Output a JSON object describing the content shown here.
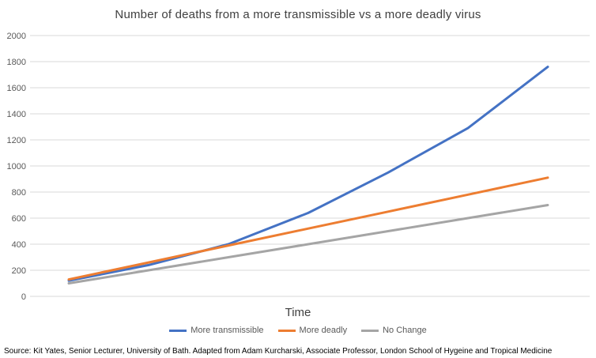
{
  "title": "Number of deaths from a more transmissible vs a more deadly virus",
  "source": "Source: Kit Yates, Senior Lecturer, University of Bath. Adapted from Adam Kurcharski, Associate Professor, London School of Hygeine and Tropical Medicine",
  "colors": {
    "background": "#ffffff",
    "gridline": "#d9d9d9",
    "tick_label": "#595959",
    "title_text": "#404040",
    "series_blue": "#4472C4",
    "series_orange": "#ED7D31",
    "series_gray": "#A5A5A5"
  },
  "chart_data": {
    "type": "line",
    "title": "Number of deaths from a more transmissible vs a more deadly virus",
    "xlabel": "Time",
    "ylabel": "",
    "x": [
      0,
      1,
      2,
      3,
      4,
      5,
      6
    ],
    "x_tick_labels_visible": false,
    "ylim": [
      0,
      2000
    ],
    "ytick_interval": 200,
    "ytick_labels": [
      "0",
      "200",
      "400",
      "600",
      "800",
      "1000",
      "1200",
      "1400",
      "1600",
      "1800",
      "2000"
    ],
    "grid": true,
    "legend_position": "bottom",
    "series": [
      {
        "name": "More transmissible",
        "color": "#4472C4",
        "values": [
          120,
          240,
          400,
          640,
          950,
          1290,
          1760
        ]
      },
      {
        "name": "More deadly",
        "color": "#ED7D31",
        "values": [
          130,
          260,
          390,
          520,
          650,
          780,
          910
        ]
      },
      {
        "name": "No Change",
        "color": "#A5A5A5",
        "values": [
          100,
          200,
          300,
          400,
          500,
          600,
          700
        ]
      }
    ]
  }
}
